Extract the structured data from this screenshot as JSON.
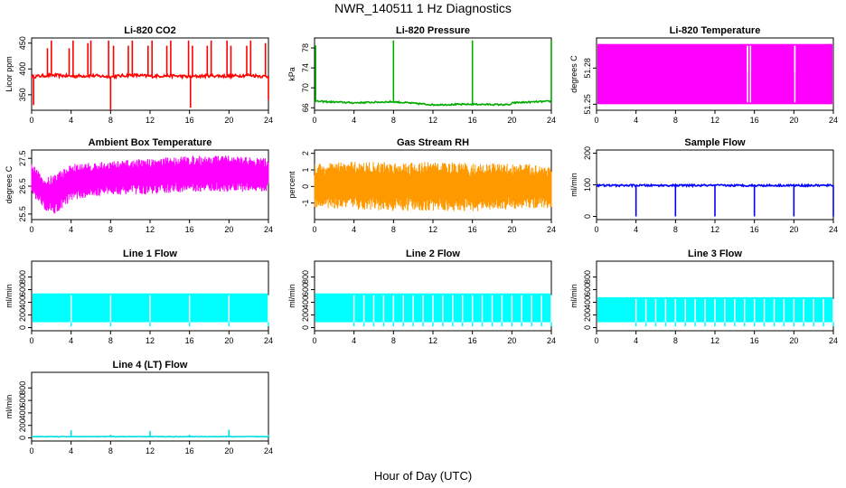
{
  "figure": {
    "title": "NWR_140511  1 Hz Diagnostics",
    "xlabel": "Hour of Day (UTC)"
  },
  "chart_data": [
    {
      "type": "line",
      "title": "Li-820 CO2",
      "ylabel": "Licor ppm",
      "xlim": [
        0,
        24
      ],
      "ylim": [
        320,
        460
      ],
      "xticks": [
        0,
        4,
        8,
        12,
        16,
        20,
        24
      ],
      "yticks": [
        350,
        400,
        450
      ],
      "color": "#ff0000",
      "base": [
        [
          0,
          385
        ],
        [
          2,
          388
        ],
        [
          4,
          386
        ],
        [
          6,
          387
        ],
        [
          8,
          385
        ],
        [
          10,
          388
        ],
        [
          12,
          386
        ],
        [
          14,
          387
        ],
        [
          16,
          385
        ],
        [
          18,
          387
        ],
        [
          20,
          386
        ],
        [
          22,
          388
        ],
        [
          24,
          385
        ]
      ],
      "band": 3,
      "spikes": [
        [
          0.2,
          330
        ],
        [
          1.6,
          440
        ],
        [
          2.0,
          455
        ],
        [
          3.8,
          440
        ],
        [
          4.2,
          455
        ],
        [
          5.7,
          450
        ],
        [
          6.0,
          455
        ],
        [
          7.8,
          455
        ],
        [
          8.0,
          320
        ],
        [
          8.3,
          445
        ],
        [
          9.8,
          445
        ],
        [
          10.2,
          455
        ],
        [
          11.8,
          445
        ],
        [
          12.2,
          455
        ],
        [
          13.7,
          445
        ],
        [
          14.1,
          455
        ],
        [
          15.9,
          455
        ],
        [
          16.1,
          325
        ],
        [
          16.3,
          445
        ],
        [
          17.8,
          445
        ],
        [
          18.2,
          455
        ],
        [
          19.8,
          455
        ],
        [
          20.2,
          445
        ],
        [
          21.8,
          445
        ],
        [
          22.2,
          455
        ],
        [
          23.7,
          450
        ],
        [
          24.0,
          340
        ]
      ]
    },
    {
      "type": "line",
      "title": "Li-820 Pressure",
      "ylabel": "kPa",
      "xlim": [
        0,
        24
      ],
      "ylim": [
        65.5,
        80
      ],
      "xticks": [
        0,
        4,
        8,
        12,
        16,
        20,
        24
      ],
      "yticks": [
        66,
        70,
        74,
        78
      ],
      "color": "#00aa00",
      "base": [
        [
          0,
          67.3
        ],
        [
          4,
          67.0
        ],
        [
          8,
          67.2
        ],
        [
          12,
          66.6
        ],
        [
          16,
          66.7
        ],
        [
          19.9,
          66.6
        ],
        [
          20.1,
          67.0
        ],
        [
          24,
          67.3
        ]
      ],
      "band": 0.15,
      "spikes": [
        [
          0.1,
          78.5
        ],
        [
          8.0,
          79.5
        ],
        [
          16.0,
          79.5
        ],
        [
          24.0,
          79.5
        ]
      ]
    },
    {
      "type": "fill",
      "title": "Li-820 Temperature",
      "ylabel": "degrees C",
      "xlim": [
        0,
        24
      ],
      "ylim": [
        51.245,
        51.305
      ],
      "xticks": [
        0,
        4,
        8,
        12,
        16,
        20,
        24
      ],
      "yticks": [
        51.25,
        51.28
      ],
      "color": "#ff00ff",
      "fill": {
        "x0": 0,
        "x1": 24,
        "lo": 51.25,
        "hi": 51.3
      },
      "gaps": [
        [
          15.3,
          51.277
        ],
        [
          15.6,
          51.277
        ],
        [
          20.1,
          51.277
        ]
      ]
    },
    {
      "type": "band",
      "title": "Ambient Box Temperature",
      "ylabel": "degrees C",
      "xlim": [
        0,
        24
      ],
      "ylim": [
        25.3,
        27.8
      ],
      "xticks": [
        0,
        4,
        8,
        12,
        16,
        20,
        24
      ],
      "yticks": [
        25.5,
        26.5,
        27.5
      ],
      "color": "#ff00ff",
      "upper": [
        [
          0,
          27.4
        ],
        [
          0.5,
          27.1
        ],
        [
          1.5,
          26.8
        ],
        [
          2.5,
          27.0
        ],
        [
          4,
          27.3
        ],
        [
          8,
          27.4
        ],
        [
          12,
          27.5
        ],
        [
          16,
          27.6
        ],
        [
          20,
          27.6
        ],
        [
          24,
          27.5
        ]
      ],
      "lower": [
        [
          0,
          26.2
        ],
        [
          0.5,
          26.0
        ],
        [
          1.5,
          25.6
        ],
        [
          2.5,
          25.5
        ],
        [
          4,
          26.0
        ],
        [
          8,
          26.2
        ],
        [
          12,
          26.2
        ],
        [
          16,
          26.3
        ],
        [
          20,
          26.3
        ],
        [
          24,
          26.3
        ]
      ]
    },
    {
      "type": "band",
      "title": "Gas Stream RH",
      "ylabel": "percent",
      "xlim": [
        0,
        24
      ],
      "ylim": [
        -2,
        2.2
      ],
      "xticks": [
        0,
        4,
        8,
        12,
        16,
        20,
        24
      ],
      "yticks": [
        -1,
        0,
        1,
        2
      ],
      "color": "#ff9900",
      "upper": [
        [
          0,
          1.4
        ],
        [
          4,
          1.5
        ],
        [
          8,
          1.5
        ],
        [
          12,
          1.5
        ],
        [
          16,
          1.4
        ],
        [
          20,
          1.4
        ],
        [
          24,
          1.3
        ]
      ],
      "lower": [
        [
          0,
          -1.3
        ],
        [
          4,
          -1.4
        ],
        [
          8,
          -1.5
        ],
        [
          12,
          -1.5
        ],
        [
          16,
          -1.5
        ],
        [
          20,
          -1.4
        ],
        [
          24,
          -1.3
        ]
      ]
    },
    {
      "type": "line",
      "title": "Sample Flow",
      "ylabel": "ml/min",
      "xlim": [
        0,
        24
      ],
      "ylim": [
        -10,
        210
      ],
      "xticks": [
        0,
        4,
        8,
        12,
        16,
        20,
        24
      ],
      "yticks": [
        0,
        100,
        200
      ],
      "color": "#0000ff",
      "base": [
        [
          0,
          98
        ],
        [
          24,
          98
        ]
      ],
      "band": 3,
      "spikes": [
        [
          4,
          0
        ],
        [
          8,
          0
        ],
        [
          12,
          0
        ],
        [
          16,
          0
        ],
        [
          20,
          0
        ],
        [
          24,
          0
        ]
      ]
    },
    {
      "type": "fill",
      "title": "Line 1 Flow",
      "ylabel": "ml/min",
      "xlim": [
        0,
        24
      ],
      "ylim": [
        -50,
        1050
      ],
      "xticks": [
        0,
        4,
        8,
        12,
        16,
        20,
        24
      ],
      "yticks": [
        0,
        200,
        400,
        600,
        800
      ],
      "color": "#00ffff",
      "fill": {
        "x0": 0,
        "x1": 24,
        "lo": 85,
        "hi": 540
      },
      "gaps": [
        [
          4,
          20
        ],
        [
          8,
          20
        ],
        [
          12,
          20
        ],
        [
          16,
          20
        ],
        [
          20,
          20
        ],
        [
          24,
          20
        ]
      ]
    },
    {
      "type": "fill",
      "title": "Line 2 Flow",
      "ylabel": "ml/min",
      "xlim": [
        0,
        24
      ],
      "ylim": [
        -50,
        1050
      ],
      "xticks": [
        0,
        4,
        8,
        12,
        16,
        20,
        24
      ],
      "yticks": [
        0,
        200,
        400,
        600,
        800
      ],
      "color": "#00ffff",
      "fill": {
        "x0": 0,
        "x1": 24,
        "lo": 85,
        "hi": 540
      },
      "gaps": [
        [
          4,
          20
        ],
        [
          5,
          20
        ],
        [
          6,
          20
        ],
        [
          7,
          20
        ],
        [
          8,
          20
        ],
        [
          9,
          20
        ],
        [
          10,
          20
        ],
        [
          11,
          20
        ],
        [
          12,
          20
        ],
        [
          13,
          20
        ],
        [
          14,
          20
        ],
        [
          15,
          20
        ],
        [
          16,
          20
        ],
        [
          17,
          20
        ],
        [
          18,
          20
        ],
        [
          19,
          20
        ],
        [
          20,
          20
        ],
        [
          21,
          20
        ],
        [
          22,
          20
        ],
        [
          23,
          20
        ],
        [
          24,
          20
        ]
      ]
    },
    {
      "type": "fill",
      "title": "Line 3 Flow",
      "ylabel": "ml/min",
      "xlim": [
        0,
        24
      ],
      "ylim": [
        -50,
        1050
      ],
      "xticks": [
        0,
        4,
        8,
        12,
        16,
        20,
        24
      ],
      "yticks": [
        0,
        200,
        400,
        600,
        800
      ],
      "color": "#00ffff",
      "fill": {
        "x0": 0,
        "x1": 24,
        "lo": 85,
        "hi": 480
      },
      "gaps": [
        [
          4,
          20
        ],
        [
          5,
          20
        ],
        [
          6,
          20
        ],
        [
          7,
          20
        ],
        [
          8,
          20
        ],
        [
          9,
          20
        ],
        [
          10,
          20
        ],
        [
          11,
          20
        ],
        [
          12,
          20
        ],
        [
          13,
          20
        ],
        [
          14,
          20
        ],
        [
          15,
          20
        ],
        [
          16,
          20
        ],
        [
          17,
          20
        ],
        [
          18,
          20
        ],
        [
          19,
          20
        ],
        [
          20,
          20
        ],
        [
          21,
          20
        ],
        [
          22,
          20
        ],
        [
          23,
          20
        ],
        [
          24,
          20
        ]
      ]
    },
    {
      "type": "line",
      "title": "Line 4 (LT) Flow",
      "ylabel": "ml/min",
      "xlim": [
        0,
        24
      ],
      "ylim": [
        -50,
        1050
      ],
      "xticks": [
        0,
        4,
        8,
        12,
        16,
        20,
        24
      ],
      "yticks": [
        0,
        200,
        400,
        600,
        800
      ],
      "color": "#00dddd",
      "base": [
        [
          0,
          20
        ],
        [
          24,
          20
        ]
      ],
      "band": 4,
      "spikes": [
        [
          4,
          120
        ],
        [
          8,
          50
        ],
        [
          12,
          110
        ],
        [
          16,
          50
        ],
        [
          20,
          130
        ],
        [
          24,
          50
        ]
      ]
    }
  ]
}
